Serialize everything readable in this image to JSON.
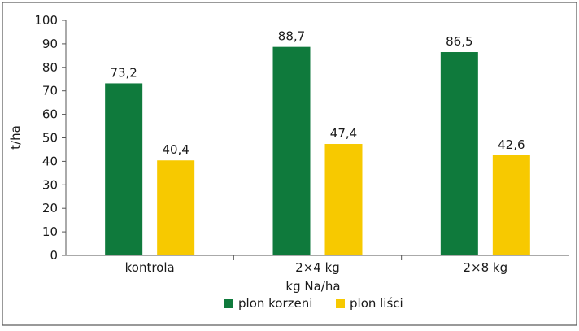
{
  "chart_data": {
    "type": "bar",
    "title": "",
    "xlabel": "kg Na/ha",
    "ylabel": "t/ha",
    "ylim": [
      0,
      100
    ],
    "yticks": [
      "0",
      "10",
      "20",
      "30",
      "40",
      "50",
      "60",
      "70",
      "80",
      "90",
      "100"
    ],
    "grid": false,
    "legend_position": "bottom",
    "categories": [
      "kontrola",
      "2×4 kg",
      "2×8 kg"
    ],
    "series": [
      {
        "name": "plon korzeni",
        "color": "#0f7a3c",
        "values": [
          73.2,
          88.7,
          86.5
        ],
        "labels": [
          "73,2",
          "88,7",
          "86,5"
        ]
      },
      {
        "name": "plon liści",
        "color": "#f7c900",
        "values": [
          40.4,
          47.4,
          42.6
        ],
        "labels": [
          "40,4",
          "47,4",
          "42,6"
        ]
      }
    ]
  }
}
